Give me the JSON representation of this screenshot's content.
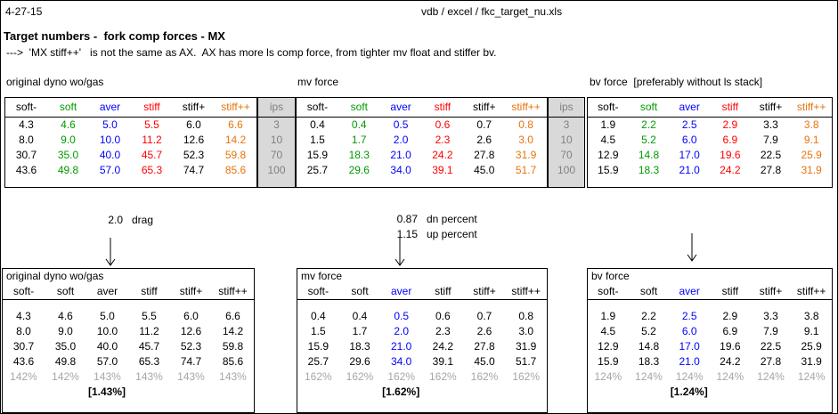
{
  "header": {
    "date": "4-27-15",
    "file_path": "vdb / excel / fkc_target_nu.xls",
    "title": "Target numbers -  fork comp forces - MX",
    "note": "--->  'MX stiff++'   is not the same as AX.  AX has more ls comp force, from tighter mv float and stiffer bv."
  },
  "columns": [
    "soft-",
    "soft",
    "aver",
    "stiff",
    "stiff+",
    "stiff++"
  ],
  "ips": {
    "label": "ips",
    "values": [
      "3",
      "10",
      "70",
      "100"
    ]
  },
  "colors": {
    "column_colors": [
      "#000000",
      "#009B00",
      "#0000FF",
      "#FF0000",
      "#000000",
      "#E8740C"
    ],
    "aver_blue": "#0000FF",
    "black": "#000000",
    "percent_gray": "#A6A6A6",
    "ips_bg": "#D9D9D9",
    "ips_text": "#808080"
  },
  "top_tables": [
    {
      "label": "original dyno wo/gas",
      "rows": [
        [
          "4.3",
          "4.6",
          "5.0",
          "5.5",
          "6.0",
          "6.6"
        ],
        [
          "8.0",
          "9.0",
          "10.0",
          "11.2",
          "12.6",
          "14.2"
        ],
        [
          "30.7",
          "35.0",
          "40.0",
          "45.7",
          "52.3",
          "59.8"
        ],
        [
          "43.6",
          "49.8",
          "57.0",
          "65.3",
          "74.7",
          "85.6"
        ]
      ]
    },
    {
      "label": "mv force",
      "rows": [
        [
          "0.4",
          "0.4",
          "0.5",
          "0.6",
          "0.7",
          "0.8"
        ],
        [
          "1.5",
          "1.7",
          "2.0",
          "2.3",
          "2.6",
          "3.0"
        ],
        [
          "15.9",
          "18.3",
          "21.0",
          "24.2",
          "27.8",
          "31.9"
        ],
        [
          "25.7",
          "29.6",
          "34.0",
          "39.1",
          "45.0",
          "51.7"
        ]
      ]
    },
    {
      "label": "bv force  [preferably without ls stack]",
      "rows": [
        [
          "1.9",
          "2.2",
          "2.5",
          "2.9",
          "3.3",
          "3.8"
        ],
        [
          "4.5",
          "5.2",
          "6.0",
          "6.9",
          "7.9",
          "9.1"
        ],
        [
          "12.9",
          "14.8",
          "17.0",
          "19.6",
          "22.5",
          "25.9"
        ],
        [
          "15.9",
          "18.3",
          "21.0",
          "24.2",
          "27.8",
          "31.9"
        ]
      ]
    }
  ],
  "annotations": {
    "drag": {
      "value": "2.0",
      "label": "drag"
    },
    "dn": {
      "value": "0.87",
      "label": "dn percent"
    },
    "up": {
      "value": "1.15",
      "label": "up percent"
    }
  },
  "bottom_tables": [
    {
      "label": "original dyno wo/gas",
      "aver_blue": false,
      "rows": [
        [
          "4.3",
          "4.6",
          "5.0",
          "5.5",
          "6.0",
          "6.6"
        ],
        [
          "8.0",
          "9.0",
          "10.0",
          "11.2",
          "12.6",
          "14.2"
        ],
        [
          "30.7",
          "35.0",
          "40.0",
          "45.7",
          "52.3",
          "59.8"
        ],
        [
          "43.6",
          "49.8",
          "57.0",
          "65.3",
          "74.7",
          "85.6"
        ]
      ],
      "percent_row": [
        "142%",
        "142%",
        "143%",
        "143%",
        "143%",
        "143%"
      ],
      "factor": "[1.43%]"
    },
    {
      "label": "mv force",
      "aver_blue": true,
      "rows": [
        [
          "0.4",
          "0.4",
          "0.5",
          "0.6",
          "0.7",
          "0.8"
        ],
        [
          "1.5",
          "1.7",
          "2.0",
          "2.3",
          "2.6",
          "3.0"
        ],
        [
          "15.9",
          "18.3",
          "21.0",
          "24.2",
          "27.8",
          "31.9"
        ],
        [
          "25.7",
          "29.6",
          "34.0",
          "39.1",
          "45.0",
          "51.7"
        ]
      ],
      "percent_row": [
        "162%",
        "162%",
        "162%",
        "162%",
        "162%",
        "162%"
      ],
      "factor": "[1.62%]"
    },
    {
      "label": "bv force",
      "aver_blue": true,
      "rows": [
        [
          "1.9",
          "2.2",
          "2.5",
          "2.9",
          "3.3",
          "3.8"
        ],
        [
          "4.5",
          "5.2",
          "6.0",
          "6.9",
          "7.9",
          "9.1"
        ],
        [
          "12.9",
          "14.8",
          "17.0",
          "19.6",
          "22.5",
          "25.9"
        ],
        [
          "15.9",
          "18.3",
          "21.0",
          "24.2",
          "27.8",
          "31.9"
        ]
      ],
      "percent_row": [
        "124%",
        "124%",
        "124%",
        "124%",
        "124%",
        "124%"
      ],
      "factor": "[1.24%]"
    }
  ]
}
